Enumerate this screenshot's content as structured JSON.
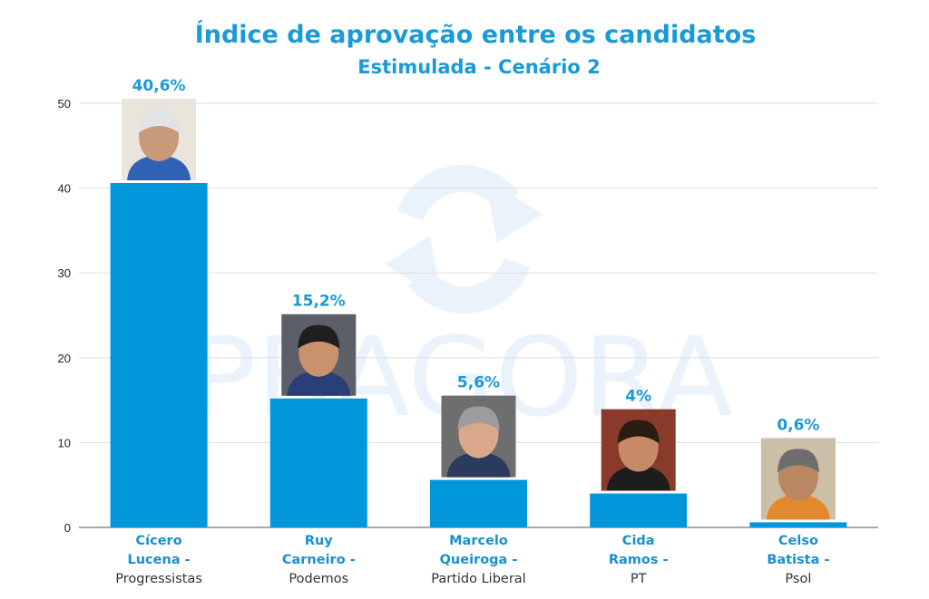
{
  "colors": {
    "bar": "#0296db",
    "title": "#1a9ad6",
    "grid": "#dddddd",
    "watermark": "#eaf3fb"
  },
  "watermark": {
    "text": "PBAGORA",
    "icon": "refresh-arrows-icon"
  },
  "chart_data": {
    "type": "bar",
    "title": "Índice de aprovação entre os candidatos",
    "subtitle": "Estimulada - Cenário 2",
    "xlabel": "",
    "ylabel": "",
    "ylim": [
      0,
      50
    ],
    "yticks": [
      0,
      10,
      20,
      30,
      40,
      50
    ],
    "grid": true,
    "legend": "none",
    "categories": [
      {
        "name_lines": [
          "Cícero",
          "Lucena -"
        ],
        "party": "Progressistas",
        "photo": "candidate-photo-cicero-lucena"
      },
      {
        "name_lines": [
          "Ruy",
          "Carneiro -"
        ],
        "party": "Podemos",
        "photo": "candidate-photo-ruy-carneiro"
      },
      {
        "name_lines": [
          "Marcelo",
          "Queiroga -"
        ],
        "party": "Partido Liberal",
        "photo": "candidate-photo-marcelo-queiroga"
      },
      {
        "name_lines": [
          "Cida",
          "Ramos -"
        ],
        "party": "PT",
        "photo": "candidate-photo-cida-ramos"
      },
      {
        "name_lines": [
          "Celso",
          "Batista -"
        ],
        "party": "Psol",
        "photo": "candidate-photo-celso-batista"
      }
    ],
    "values": [
      40.6,
      15.2,
      5.6,
      4,
      0.6
    ],
    "value_labels": [
      "40,6%",
      "15,2%",
      "5,6%",
      "4%",
      "0,6%"
    ]
  }
}
